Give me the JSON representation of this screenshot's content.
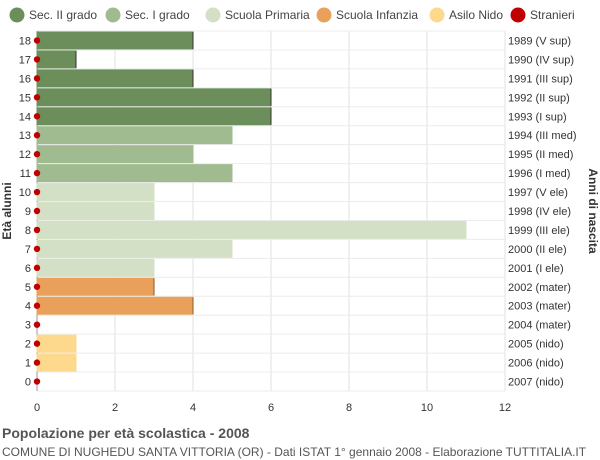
{
  "chart_data": {
    "type": "bar",
    "orientation": "horizontal",
    "xlim": [
      0,
      12
    ],
    "xticks": [
      0,
      2,
      4,
      6,
      8,
      10,
      12
    ],
    "ylabel_left": "Età alunni",
    "ylabel_right": "Anni di nascita",
    "legend_position": "top",
    "grid": true,
    "categories": [
      {
        "age": "18",
        "year": "1989 (V sup)",
        "value": 4,
        "group": "sec2"
      },
      {
        "age": "17",
        "year": "1990 (IV sup)",
        "value": 1,
        "group": "sec2"
      },
      {
        "age": "16",
        "year": "1991 (III sup)",
        "value": 4,
        "group": "sec2"
      },
      {
        "age": "15",
        "year": "1992 (II sup)",
        "value": 6,
        "group": "sec2"
      },
      {
        "age": "14",
        "year": "1993 (I sup)",
        "value": 6,
        "group": "sec2"
      },
      {
        "age": "13",
        "year": "1994 (III med)",
        "value": 5,
        "group": "sec1"
      },
      {
        "age": "12",
        "year": "1995 (II med)",
        "value": 4,
        "group": "sec1"
      },
      {
        "age": "11",
        "year": "1996 (I med)",
        "value": 5,
        "group": "sec1"
      },
      {
        "age": "10",
        "year": "1997 (V ele)",
        "value": 3,
        "group": "prim"
      },
      {
        "age": "9",
        "year": "1998 (IV ele)",
        "value": 3,
        "group": "prim"
      },
      {
        "age": "8",
        "year": "1999 (III ele)",
        "value": 11,
        "group": "prim"
      },
      {
        "age": "7",
        "year": "2000 (II ele)",
        "value": 5,
        "group": "prim"
      },
      {
        "age": "6",
        "year": "2001 (I ele)",
        "value": 3,
        "group": "prim"
      },
      {
        "age": "5",
        "year": "2002 (mater)",
        "value": 3,
        "group": "inf"
      },
      {
        "age": "4",
        "year": "2003 (mater)",
        "value": 4,
        "group": "inf"
      },
      {
        "age": "3",
        "year": "2004 (mater)",
        "value": 0,
        "group": "inf"
      },
      {
        "age": "2",
        "year": "2005 (nido)",
        "value": 1,
        "group": "nido"
      },
      {
        "age": "1",
        "year": "2006 (nido)",
        "value": 1,
        "group": "nido"
      },
      {
        "age": "0",
        "year": "2007 (nido)",
        "value": 0,
        "group": "nido"
      }
    ],
    "series": [
      {
        "key": "sec2",
        "name": "Sec. II grado",
        "color": "#6b8e5a"
      },
      {
        "key": "sec1",
        "name": "Sec. I grado",
        "color": "#a0bb90"
      },
      {
        "key": "prim",
        "name": "Scuola Primaria",
        "color": "#d4e0c6"
      },
      {
        "key": "inf",
        "name": "Scuola Infanzia",
        "color": "#e9a05a"
      },
      {
        "key": "nido",
        "name": "Asilo Nido",
        "color": "#fdd98e"
      },
      {
        "key": "str",
        "name": "Stranieri",
        "color": "#c00000"
      }
    ],
    "stranieri": [
      0,
      0,
      0,
      0,
      0,
      0,
      0,
      0,
      0,
      0,
      0,
      0,
      0,
      0,
      0,
      0,
      0,
      0,
      0
    ]
  },
  "footer": {
    "title": "Popolazione per età scolastica - 2008",
    "subtitle": "COMUNE DI NUGHEDU SANTA VITTORIA (OR) - Dati ISTAT 1° gennaio 2008 - Elaborazione TUTTITALIA.IT"
  }
}
